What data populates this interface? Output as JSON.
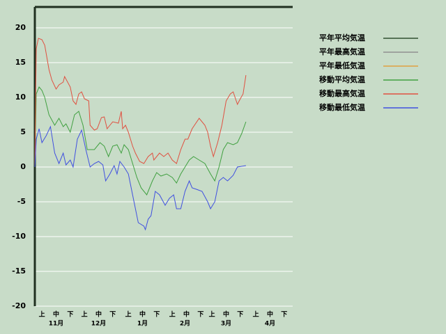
{
  "chart_data": {
    "type": "line",
    "xlim": [
      0,
      182
    ],
    "ylim": [
      -20,
      23
    ],
    "yticks": [
      20,
      15,
      10,
      5,
      0,
      -5,
      -10,
      -15,
      -20
    ],
    "grid": true,
    "xticks": [
      {
        "value": 5,
        "label": "上"
      },
      {
        "value": 15,
        "label": "中"
      },
      {
        "value": 25,
        "label": "下"
      },
      {
        "value": 35,
        "label": "上"
      },
      {
        "value": 45,
        "label": "中"
      },
      {
        "value": 55,
        "label": "下"
      },
      {
        "value": 66,
        "label": "上"
      },
      {
        "value": 76,
        "label": "中"
      },
      {
        "value": 86,
        "label": "下"
      },
      {
        "value": 97,
        "label": "上"
      },
      {
        "value": 107,
        "label": "中"
      },
      {
        "value": 117,
        "label": "下"
      },
      {
        "value": 125,
        "label": "上"
      },
      {
        "value": 135,
        "label": "中"
      },
      {
        "value": 145,
        "label": "下"
      },
      {
        "value": 156,
        "label": "上"
      },
      {
        "value": 166,
        "label": "中"
      },
      {
        "value": 176,
        "label": "下"
      }
    ],
    "months": [
      {
        "value": 15,
        "label": "11月"
      },
      {
        "value": 45,
        "label": "12月"
      },
      {
        "value": 76,
        "label": "1月"
      },
      {
        "value": 106,
        "label": "2月"
      },
      {
        "value": 135,
        "label": "3月"
      },
      {
        "value": 166,
        "label": "4月"
      }
    ],
    "series": [
      {
        "name": "平年平均気温",
        "color": "#305030",
        "x": [],
        "values": []
      },
      {
        "name": "平年最高気温",
        "color": "#909090",
        "x": [],
        "values": []
      },
      {
        "name": "平年最低気温",
        "color": "#e0a040",
        "x": [],
        "values": []
      },
      {
        "name": "移動平均気温",
        "color": "#40a040",
        "x": [
          0,
          1,
          3,
          5,
          7,
          10,
          14,
          17,
          20,
          22,
          25,
          28,
          31,
          34,
          37,
          42,
          46,
          49,
          52,
          55,
          58,
          61,
          63,
          66,
          69,
          72,
          75,
          79,
          83,
          86,
          89,
          93,
          97,
          100,
          103,
          106,
          109,
          112,
          116,
          120,
          124,
          127,
          130,
          133,
          136,
          140,
          143,
          146,
          149
        ],
        "values": [
          0,
          10.5,
          11.5,
          11,
          10,
          7.5,
          6,
          7,
          5.8,
          6.2,
          5,
          7.5,
          8,
          6,
          2.5,
          2.5,
          3.5,
          3,
          1.5,
          3,
          3.2,
          2,
          3.2,
          2.5,
          0.5,
          -1.5,
          -3,
          -4,
          -2,
          -0.8,
          -1.3,
          -1,
          -1.5,
          -2.3,
          -1,
          0,
          1,
          1.5,
          1,
          0.5,
          -1,
          -2,
          0,
          2.5,
          3.5,
          3.2,
          3.5,
          4.8,
          6.5
        ]
      },
      {
        "name": "移動最高気温",
        "color": "#e05040",
        "x": [
          0,
          1,
          2.5,
          5,
          7,
          10,
          12,
          15,
          17,
          20,
          21,
          25,
          27,
          29,
          31,
          33,
          35,
          38,
          39,
          42,
          44,
          47,
          49,
          51,
          53,
          55,
          59,
          61,
          62,
          64,
          66,
          69,
          71,
          74,
          77,
          80,
          83,
          84,
          88,
          91,
          94,
          97,
          100,
          103,
          106,
          108,
          111,
          116,
          120,
          122,
          124,
          126,
          129,
          132,
          135,
          138,
          140,
          143,
          145,
          147,
          149
        ],
        "values": [
          0,
          17,
          18.5,
          18.3,
          17.5,
          14,
          12.5,
          11.2,
          11.8,
          12.2,
          13,
          11.5,
          9.5,
          9,
          10.5,
          10.8,
          9.8,
          9.5,
          6,
          5.3,
          5.5,
          7.1,
          7.2,
          5.5,
          6,
          6.5,
          6.3,
          8,
          5.5,
          6,
          5,
          3,
          2,
          0.8,
          0.5,
          1.5,
          2,
          1,
          2,
          1.5,
          2,
          1,
          0.5,
          2.5,
          4,
          4,
          5.5,
          7,
          6,
          5,
          3,
          1.5,
          3.5,
          6,
          9.5,
          10.5,
          10.8,
          9,
          9.8,
          10.5,
          13.2
        ]
      },
      {
        "name": "移動最低気温",
        "color": "#4050e0",
        "x": [
          0,
          1,
          3,
          5,
          8,
          11,
          14,
          17,
          20,
          22,
          25,
          27,
          30,
          33,
          36,
          39,
          42,
          45,
          48,
          50,
          53,
          56,
          58,
          60,
          63,
          66,
          70,
          73,
          77,
          78,
          80,
          82,
          85,
          88,
          92,
          95,
          98,
          100,
          103,
          106,
          109,
          111,
          114,
          118,
          122,
          124,
          127,
          130,
          133,
          136,
          140,
          143,
          146,
          149
        ],
        "values": [
          0,
          4,
          5.5,
          3.5,
          4.5,
          5.8,
          2,
          0.5,
          2,
          0.3,
          1,
          0,
          4,
          5.3,
          2.5,
          0,
          0.5,
          0.8,
          0.3,
          -2,
          -1,
          0.2,
          -1,
          0.8,
          0,
          -1,
          -5,
          -8,
          -8.5,
          -9,
          -7.5,
          -7,
          -3.5,
          -4,
          -5.5,
          -4.5,
          -4,
          -6,
          -6,
          -3.5,
          -2,
          -3,
          -3.2,
          -3.5,
          -5,
          -6,
          -5,
          -2,
          -1.5,
          -2,
          -1.2,
          0,
          0.1,
          0.2
        ]
      }
    ]
  }
}
